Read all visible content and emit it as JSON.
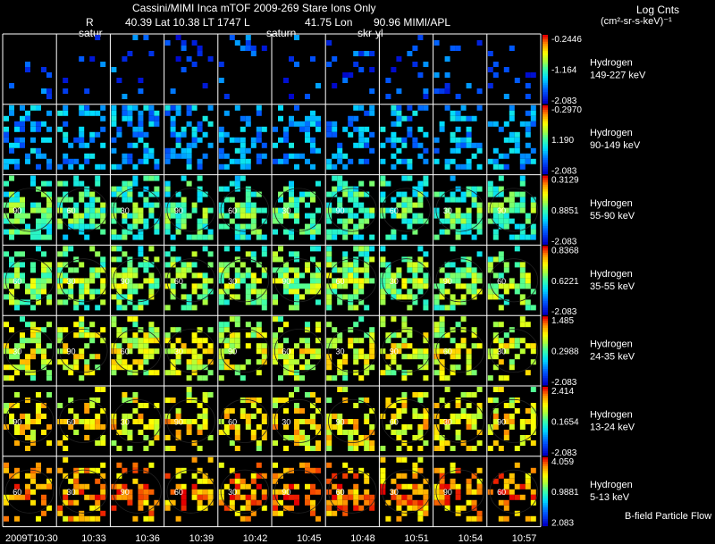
{
  "header": {
    "title": "Cassini/MIMI Inca mTOF  2009-269   Stare   Ions Only",
    "pos_r_label": "R",
    "pos_values": "40.39 Lat 10.38 LT 1747 L",
    "lon_value": "41.75 Lon",
    "right_text": "90.96  MIMI/APL",
    "units_title": "Log Cnts",
    "units": "(cm²-sr-s-keV)⁻¹"
  },
  "panel_markers": [
    "satur",
    "saturn",
    "skr-yl"
  ],
  "footer": "B-field Particle Flow",
  "chart_data": {
    "type": "heatmap",
    "title": "Cassini/MIMI Inca mTOF 2009-269 Stare Ions Only",
    "x_ticks": [
      "2009T10:30",
      "10:33",
      "10:36",
      "10:39",
      "10:42",
      "10:45",
      "10:48",
      "10:51",
      "10:54",
      "10:57"
    ],
    "columns": 10,
    "rows": [
      {
        "species": "Hydrogen",
        "energy": "149-227 keV",
        "cb_max": "-0.2446",
        "cb_mid": "-1.164",
        "cb_min": "-2.083",
        "density": 0.1,
        "level": 0.15
      },
      {
        "species": "Hydrogen",
        "energy": "90-149 keV",
        "cb_max": "-0.2970",
        "cb_mid": "1.190",
        "cb_min": "-2.083",
        "density": 0.38,
        "level": 0.28
      },
      {
        "species": "Hydrogen",
        "energy": "55-90 keV",
        "cb_max": "0.3129",
        "cb_mid": "0.8851",
        "cb_min": "-2.083",
        "density": 0.72,
        "level": 0.42
      },
      {
        "species": "Hydrogen",
        "energy": "35-55 keV",
        "cb_max": "0.8368",
        "cb_mid": "0.6221",
        "cb_min": "-2.083",
        "density": 0.72,
        "level": 0.5
      },
      {
        "species": "Hydrogen",
        "energy": "24-35 keV",
        "cb_max": "1.485",
        "cb_mid": "0.2988",
        "cb_min": "-2.083",
        "density": 0.6,
        "level": 0.6
      },
      {
        "species": "Hydrogen",
        "energy": "13-24 keV",
        "cb_max": "2.414",
        "cb_mid": "0.1654",
        "cb_min": "-2.083",
        "density": 0.55,
        "level": 0.66
      },
      {
        "species": "Hydrogen",
        "energy": "5-13 keV",
        "cb_max": "4.059",
        "cb_mid": "0.9881",
        "cb_min": "2.083",
        "density": 0.55,
        "level": 0.78
      }
    ],
    "contour_labels": [
      "60",
      "30",
      "90"
    ]
  }
}
